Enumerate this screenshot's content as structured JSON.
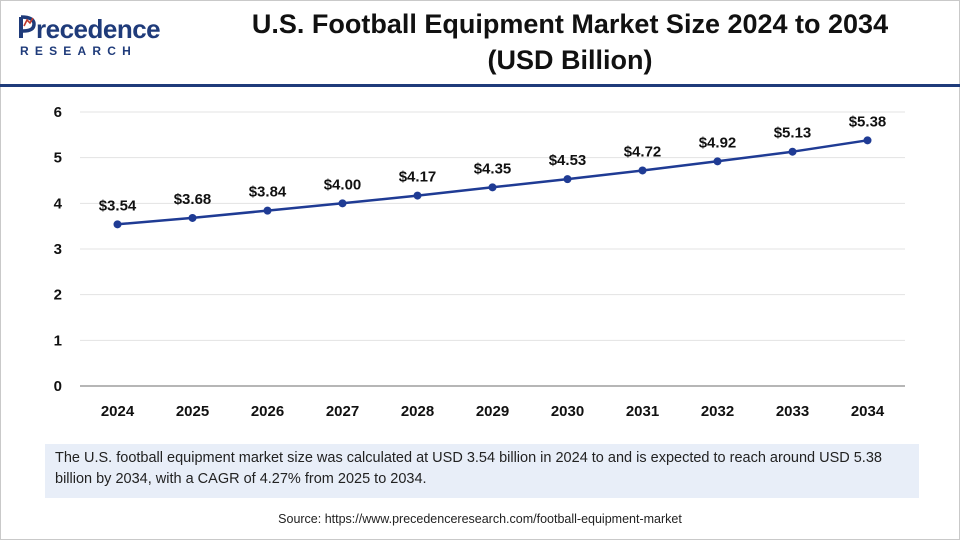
{
  "header": {
    "logo_main": "recedence",
    "logo_sub": "RESEARCH",
    "title_line1": "U.S. Football Equipment Market Size 2024 to 2034",
    "title_line2": "(USD Billion)"
  },
  "colors": {
    "line": "#1f3b94",
    "brand": "#1f3b7a",
    "grid": "#e3e3e3",
    "axis": "#8a8a8a",
    "note_bg": "#e8eef8"
  },
  "chart_data": {
    "type": "line",
    "title": "U.S. Football Equipment Market Size 2024 to 2034 (USD Billion)",
    "xlabel": "",
    "ylabel": "",
    "categories": [
      "2024",
      "2025",
      "2026",
      "2027",
      "2028",
      "2029",
      "2030",
      "2031",
      "2032",
      "2033",
      "2034"
    ],
    "values": [
      3.54,
      3.68,
      3.84,
      4.0,
      4.17,
      4.35,
      4.53,
      4.72,
      4.92,
      5.13,
      5.38
    ],
    "data_labels": [
      "$3.54",
      "$3.68",
      "$3.84",
      "$4.00",
      "$4.17",
      "$4.35",
      "$4.53",
      "$4.72",
      "$4.92",
      "$5.13",
      "$5.38"
    ],
    "y_ticks": [
      "0",
      "1",
      "2",
      "3",
      "4",
      "5",
      "6"
    ],
    "ylim": [
      0,
      6
    ],
    "grid": true,
    "legend": "none"
  },
  "note": {
    "text": "The U.S. football equipment market size was calculated at USD 3.54 billion in 2024 to and is expected to reach around USD 5.38 billion by 2034, with a CAGR of 4.27% from 2025 to 2034."
  },
  "source": {
    "text": "Source: https://www.precedenceresearch.com/football-equipment-market"
  }
}
